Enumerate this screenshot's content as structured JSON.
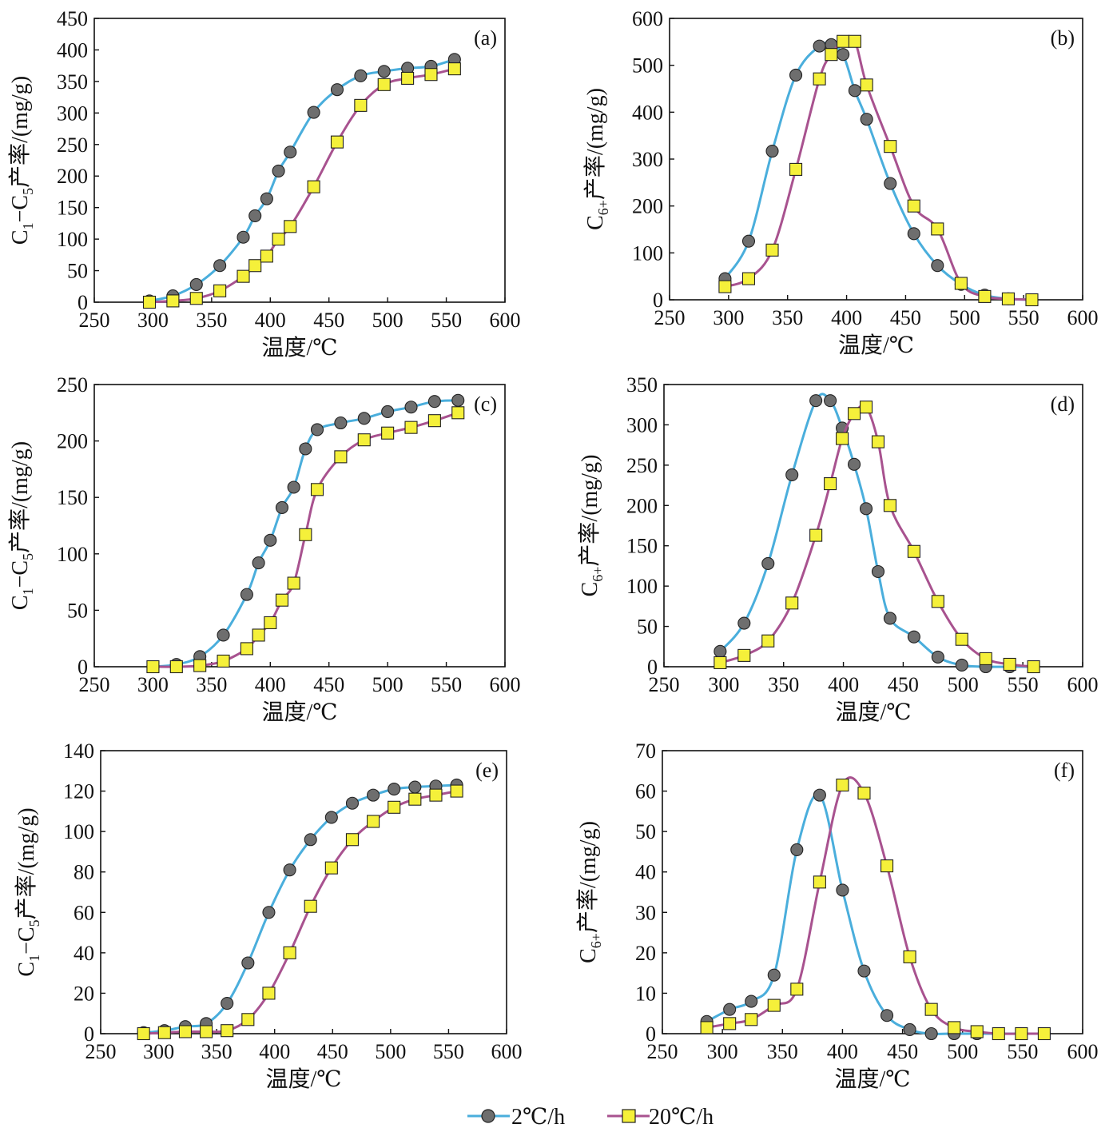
{
  "legend": {
    "items": [
      {
        "label": "2℃/h",
        "color": "#4aaedc",
        "marker": "circle"
      },
      {
        "label": "20℃/h",
        "color": "#a8528f",
        "marker": "square"
      }
    ]
  },
  "colors": {
    "series_2": "#4aaedc",
    "series_20": "#a8528f",
    "marker_circle": "#6e6e6e",
    "marker_square": "#f5f03a"
  },
  "chart_data": [
    {
      "type": "line",
      "panel": "(a)",
      "xlabel": "温度/℃",
      "ylabel": {
        "pre": "C",
        "sub1": "1",
        "mid": "−C",
        "sub2": "5",
        "post": "产率/(mg/g)"
      },
      "xlim": [
        250,
        600
      ],
      "ylim": [
        0,
        450
      ],
      "xticks": [
        250,
        300,
        350,
        400,
        450,
        500,
        550,
        600
      ],
      "yticks": [
        0,
        50,
        100,
        150,
        200,
        250,
        300,
        350,
        400,
        450
      ],
      "series": [
        {
          "name": "2℃/h",
          "x": [
            297,
            317,
            337,
            357,
            377,
            387,
            397,
            407,
            417,
            437,
            457,
            477,
            497,
            517,
            537,
            557
          ],
          "y": [
            2,
            10,
            28,
            58,
            103,
            137,
            164,
            208,
            238,
            301,
            337,
            359,
            366,
            371,
            374,
            385
          ]
        },
        {
          "name": "20℃/h",
          "x": [
            297,
            317,
            337,
            357,
            377,
            387,
            397,
            407,
            417,
            437,
            457,
            477,
            497,
            517,
            537,
            557
          ],
          "y": [
            0,
            2,
            6,
            18,
            41,
            58,
            73,
            100,
            120,
            183,
            254,
            312,
            345,
            355,
            361,
            370
          ]
        }
      ]
    },
    {
      "type": "line",
      "panel": "(b)",
      "xlabel": "温度/℃",
      "ylabel": {
        "pre": "C",
        "sub1": "6+",
        "mid": "",
        "sub2": "",
        "post": "产率/(mg/g)"
      },
      "xlim": [
        250,
        600
      ],
      "ylim": [
        0,
        600
      ],
      "xticks": [
        250,
        300,
        350,
        400,
        450,
        500,
        550,
        600
      ],
      "yticks": [
        0,
        100,
        200,
        300,
        400,
        500,
        600
      ],
      "series": [
        {
          "name": "2℃/h",
          "x": [
            297,
            317,
            337,
            357,
            377,
            387,
            397,
            407,
            417,
            437,
            457,
            477,
            497,
            517,
            537,
            557
          ],
          "y": [
            45,
            125,
            317,
            479,
            541,
            544,
            523,
            446,
            385,
            248,
            141,
            73,
            33,
            10,
            2,
            0
          ]
        },
        {
          "name": "20℃/h",
          "x": [
            297,
            317,
            337,
            357,
            377,
            387,
            397,
            407,
            417,
            437,
            457,
            477,
            497,
            517,
            537,
            557
          ],
          "y": [
            28,
            45,
            106,
            278,
            471,
            523,
            551,
            551,
            458,
            327,
            200,
            151,
            35,
            7,
            2,
            0
          ]
        }
      ]
    },
    {
      "type": "line",
      "panel": "(c)",
      "xlabel": "温度/℃",
      "ylabel": {
        "pre": "C",
        "sub1": "1",
        "mid": "−C",
        "sub2": "5",
        "post": "产率/(mg/g)"
      },
      "xlim": [
        250,
        600
      ],
      "ylim": [
        0,
        250
      ],
      "xticks": [
        250,
        300,
        350,
        400,
        450,
        500,
        550,
        600
      ],
      "yticks": [
        0,
        50,
        100,
        150,
        200,
        250
      ],
      "series": [
        {
          "name": "2℃/h",
          "x": [
            300,
            320,
            340,
            360,
            380,
            390,
            400,
            410,
            420,
            430,
            440,
            460,
            480,
            500,
            520,
            540,
            560
          ],
          "y": [
            0,
            2,
            9,
            28,
            64,
            92,
            112,
            141,
            159,
            193,
            210,
            216,
            220,
            226,
            230,
            235,
            236
          ]
        },
        {
          "name": "20℃/h",
          "x": [
            300,
            320,
            340,
            360,
            380,
            390,
            400,
            410,
            420,
            430,
            440,
            460,
            480,
            500,
            520,
            540,
            560
          ],
          "y": [
            0,
            0,
            1,
            5,
            16,
            28,
            39,
            59,
            74,
            117,
            157,
            186,
            201,
            207,
            212,
            218,
            225
          ]
        }
      ]
    },
    {
      "type": "line",
      "panel": "(d)",
      "xlabel": "温度/℃",
      "ylabel": {
        "pre": "C",
        "sub1": "6+",
        "mid": "",
        "sub2": "",
        "post": "产率/(mg/g)"
      },
      "xlim": [
        250,
        600
      ],
      "ylim": [
        0,
        350
      ],
      "xticks": [
        250,
        300,
        350,
        400,
        450,
        500,
        550,
        600
      ],
      "yticks": [
        0,
        50,
        100,
        150,
        200,
        250,
        300,
        350
      ],
      "series": [
        {
          "name": "2℃/h",
          "x": [
            297,
            317,
            337,
            357,
            377,
            389,
            399,
            409,
            419,
            429,
            439,
            459,
            479,
            499,
            519,
            539,
            559
          ],
          "y": [
            19,
            54,
            128,
            238,
            330,
            330,
            296,
            251,
            196,
            118,
            60,
            37,
            12,
            2,
            0,
            0,
            0
          ]
        },
        {
          "name": "20℃/h",
          "x": [
            297,
            317,
            337,
            357,
            377,
            389,
            399,
            409,
            419,
            429,
            439,
            459,
            479,
            499,
            519,
            539,
            559
          ],
          "y": [
            5,
            14,
            32,
            79,
            163,
            227,
            283,
            314,
            322,
            279,
            200,
            143,
            81,
            34,
            10,
            3,
            0
          ]
        }
      ]
    },
    {
      "type": "line",
      "panel": "(e)",
      "xlabel": "温度/℃",
      "ylabel": {
        "pre": "C",
        "sub1": "1",
        "mid": "−C",
        "sub2": "5",
        "post": "产率/(mg/g)"
      },
      "xlim": [
        250,
        600
      ],
      "ylim": [
        0,
        140
      ],
      "xticks": [
        250,
        300,
        350,
        400,
        450,
        500,
        550,
        600
      ],
      "yticks": [
        0,
        20,
        40,
        60,
        80,
        100,
        120,
        140
      ],
      "series": [
        {
          "name": "2℃/h",
          "x": [
            287,
            305,
            323,
            341,
            359,
            377,
            395,
            413,
            431,
            449,
            467,
            485,
            503,
            521,
            539,
            557
          ],
          "y": [
            0.5,
            1.5,
            3.5,
            5,
            15,
            35,
            60,
            81,
            96,
            107,
            114,
            118,
            121,
            122,
            122.5,
            123
          ]
        },
        {
          "name": "20℃/h",
          "x": [
            287,
            305,
            323,
            341,
            359,
            377,
            395,
            413,
            431,
            449,
            467,
            485,
            503,
            521,
            539,
            557
          ],
          "y": [
            0,
            0.5,
            1,
            1,
            1.5,
            7,
            20,
            40,
            63,
            82,
            96,
            105,
            112,
            116,
            118,
            120
          ]
        }
      ]
    },
    {
      "type": "line",
      "panel": "(f)",
      "xlabel": "温度/℃",
      "ylabel": {
        "pre": "C",
        "sub1": "6+",
        "mid": "",
        "sub2": "",
        "post": "产率/(mg/g)"
      },
      "xlim": [
        250,
        600
      ],
      "ylim": [
        0,
        70
      ],
      "xticks": [
        250,
        300,
        350,
        400,
        450,
        500,
        550,
        600
      ],
      "yticks": [
        0,
        10,
        20,
        30,
        40,
        50,
        60,
        70
      ],
      "series": [
        {
          "name": "2℃/h",
          "x": [
            287,
            306,
            324,
            343,
            362,
            381,
            400,
            418,
            437,
            456,
            474,
            493,
            512,
            530,
            549,
            568
          ],
          "y": [
            3,
            6,
            8,
            14.5,
            45.5,
            59,
            35.5,
            15.5,
            4.5,
            1,
            0,
            0,
            0,
            0,
            0,
            0
          ]
        },
        {
          "name": "20℃/h",
          "x": [
            287,
            306,
            324,
            343,
            362,
            381,
            400,
            418,
            437,
            456,
            474,
            493,
            512,
            530,
            549,
            568
          ],
          "y": [
            1.5,
            2.5,
            3.5,
            7,
            11,
            37.5,
            61.5,
            59.5,
            41.5,
            19,
            6,
            1.5,
            0.5,
            0,
            0,
            0
          ]
        }
      ]
    }
  ]
}
